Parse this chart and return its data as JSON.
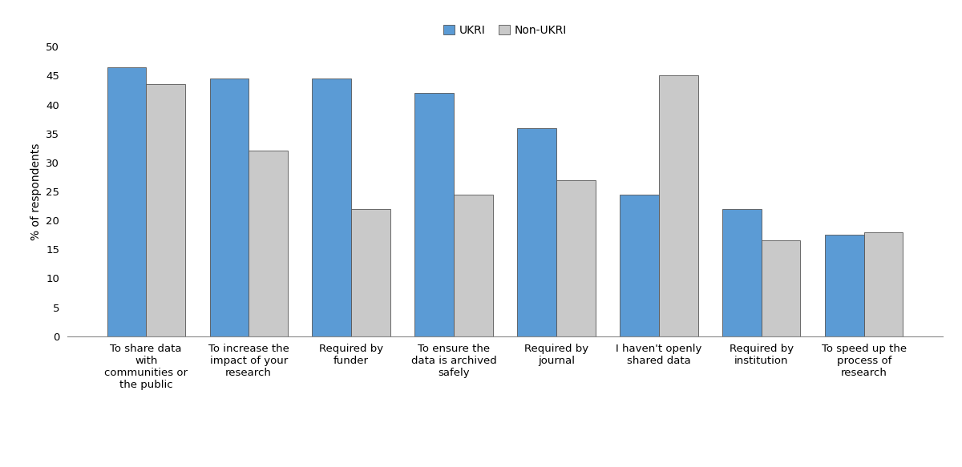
{
  "categories": [
    "To share data\nwith\ncommunities or\nthe public",
    "To increase the\nimpact of your\nresearch",
    "Required by\nfunder",
    "To ensure the\ndata is archived\nsafely",
    "Required by\njournal",
    "I haven't openly\nshared data",
    "Required by\ninstitution",
    "To speed up the\nprocess of\nresearch"
  ],
  "ukri_values": [
    46.5,
    44.5,
    44.5,
    42.0,
    36.0,
    24.5,
    22.0,
    17.5
  ],
  "non_ukri_values": [
    43.5,
    32.0,
    22.0,
    24.5,
    27.0,
    45.0,
    16.5,
    18.0
  ],
  "ukri_color": "#5B9BD5",
  "non_ukri_color": "#C9C9C9",
  "bar_edge_color": "#555555",
  "ylabel": "% of respondents",
  "ylim": [
    0,
    50
  ],
  "yticks": [
    0,
    5,
    10,
    15,
    20,
    25,
    30,
    35,
    40,
    45,
    50
  ],
  "legend_labels": [
    "UKRI",
    "Non-UKRI"
  ],
  "bar_width": 0.38,
  "background_color": "#ffffff",
  "label_fontsize": 10,
  "tick_fontsize": 9.5,
  "legend_fontsize": 10
}
